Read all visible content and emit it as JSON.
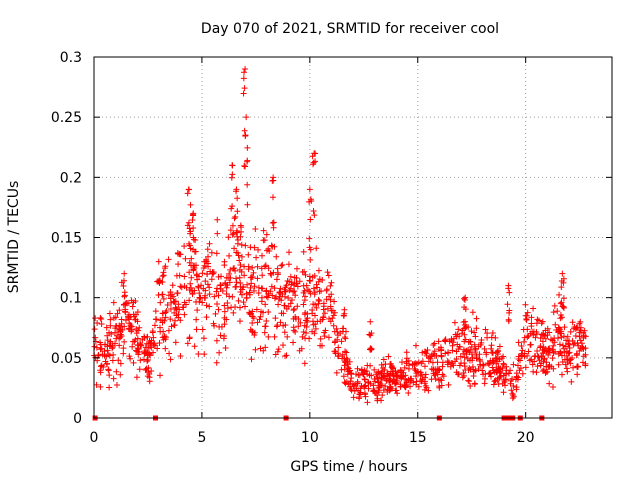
{
  "chart_data": {
    "type": "scatter",
    "title": "Day 070 of 2021, SRMTID for receiver cool",
    "xlabel": "GPS time / hours",
    "ylabel": "SRMTID / TECUs",
    "xlim": [
      0,
      24
    ],
    "ylim": [
      0,
      0.3
    ],
    "xticks": [
      0,
      5,
      10,
      15,
      20
    ],
    "yticks": [
      0,
      0.05,
      0.1,
      0.15,
      0.2,
      0.25,
      0.3
    ],
    "xtick_labels": [
      "0",
      "5",
      "10",
      "15",
      "20"
    ],
    "ytick_labels": [
      "0",
      "0.05",
      "0.1",
      "0.15",
      "0.2",
      "0.25",
      "0.3"
    ],
    "grid": true,
    "marker": "+",
    "color": "#ff0000",
    "series": [
      {
        "name": "SRMTID",
        "profile": [
          [
            0.0,
            0.06
          ],
          [
            0.5,
            0.055
          ],
          [
            1.0,
            0.06
          ],
          [
            1.5,
            0.08
          ],
          [
            2.0,
            0.07
          ],
          [
            2.5,
            0.05
          ],
          [
            3.0,
            0.08
          ],
          [
            3.5,
            0.09
          ],
          [
            4.0,
            0.1
          ],
          [
            4.5,
            0.12
          ],
          [
            5.0,
            0.1
          ],
          [
            5.5,
            0.11
          ],
          [
            6.0,
            0.1
          ],
          [
            6.5,
            0.12
          ],
          [
            7.0,
            0.11
          ],
          [
            7.5,
            0.1
          ],
          [
            8.0,
            0.11
          ],
          [
            8.5,
            0.1
          ],
          [
            9.0,
            0.09
          ],
          [
            9.5,
            0.09
          ],
          [
            10.0,
            0.1
          ],
          [
            10.5,
            0.09
          ],
          [
            11.0,
            0.09
          ],
          [
            11.5,
            0.05
          ],
          [
            12.0,
            0.03
          ],
          [
            13.0,
            0.03
          ],
          [
            14.0,
            0.035
          ],
          [
            15.0,
            0.04
          ],
          [
            16.0,
            0.045
          ],
          [
            17.0,
            0.06
          ],
          [
            18.0,
            0.05
          ],
          [
            19.0,
            0.04
          ],
          [
            19.5,
            0.03
          ],
          [
            20.0,
            0.07
          ],
          [
            20.5,
            0.06
          ],
          [
            21.0,
            0.05
          ],
          [
            21.5,
            0.07
          ],
          [
            22.0,
            0.06
          ],
          [
            22.5,
            0.06
          ],
          [
            22.8,
            0.06
          ]
        ],
        "spikes": [
          [
            4.4,
            0.19
          ],
          [
            4.6,
            0.17
          ],
          [
            6.4,
            0.21
          ],
          [
            6.6,
            0.19
          ],
          [
            6.8,
            0.16
          ],
          [
            7.0,
            0.29
          ],
          [
            7.05,
            0.25
          ],
          [
            8.3,
            0.2
          ],
          [
            10.0,
            0.19
          ],
          [
            10.2,
            0.22
          ],
          [
            1.4,
            0.12
          ],
          [
            3.0,
            0.13
          ],
          [
            19.2,
            0.11
          ],
          [
            21.7,
            0.12
          ],
          [
            17.2,
            0.1
          ],
          [
            11.6,
            0.09
          ],
          [
            12.8,
            0.08
          ]
        ],
        "zero_points": [
          0.05,
          2.85,
          8.9,
          16.0,
          19.0,
          19.2,
          19.4,
          19.75,
          20.75
        ]
      }
    ]
  }
}
